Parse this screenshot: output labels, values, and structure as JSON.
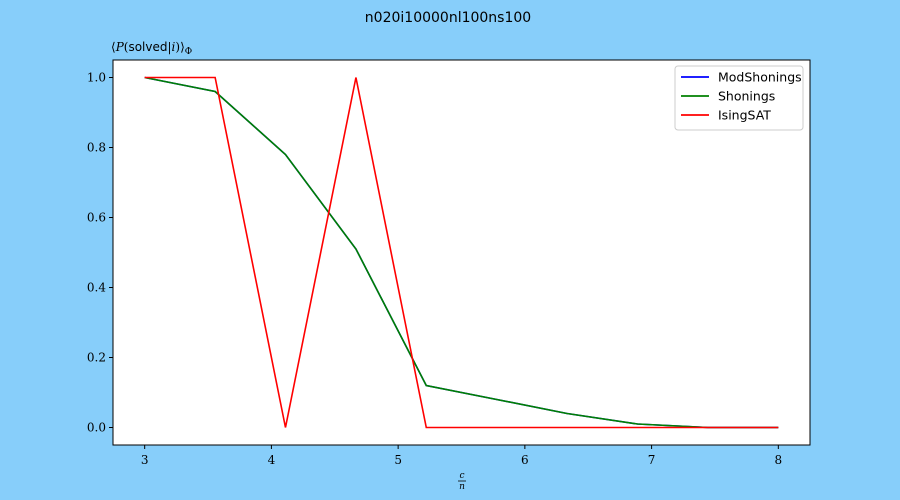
{
  "chart_data": {
    "type": "line",
    "title": "n020i10000nl100ns100",
    "ylabel_parts": {
      "open": "⟨",
      "p": "P",
      "lp": "(",
      "solved": "solved",
      "bar": "|",
      "i": "i",
      "rp": ")",
      "close": "⟩",
      "sub": "Φ"
    },
    "xlabel_parts": {
      "num": "c",
      "den": "n"
    },
    "xlim": [
      2.75,
      8.25
    ],
    "ylim": [
      -0.05,
      1.05
    ],
    "xticks": [
      3,
      4,
      5,
      6,
      7,
      8
    ],
    "yticks": [
      0.0,
      0.2,
      0.4,
      0.6,
      0.8,
      1.0
    ],
    "ytick_labels": [
      "0.0",
      "0.2",
      "0.4",
      "0.6",
      "0.8",
      "1.0"
    ],
    "grid": false,
    "legend_position": "top-right",
    "x": [
      3.0,
      3.556,
      4.111,
      4.667,
      5.222,
      5.778,
      6.333,
      6.889,
      7.444,
      8.0
    ],
    "series": [
      {
        "name": "ModShonings",
        "color": "#0000ff",
        "values": [
          1.0,
          0.96,
          0.78,
          0.51,
          0.12,
          0.08,
          0.04,
          0.01,
          0.0,
          0.0
        ]
      },
      {
        "name": "Shonings",
        "color": "#008000",
        "values": [
          1.0,
          0.96,
          0.78,
          0.51,
          0.12,
          0.08,
          0.04,
          0.01,
          0.0,
          0.0
        ]
      },
      {
        "name": "IsingSAT",
        "color": "#ff0000",
        "values": [
          1.0,
          1.0,
          0.0,
          1.0,
          0.0,
          0.0,
          0.0,
          0.0,
          0.0,
          0.0
        ]
      }
    ]
  }
}
